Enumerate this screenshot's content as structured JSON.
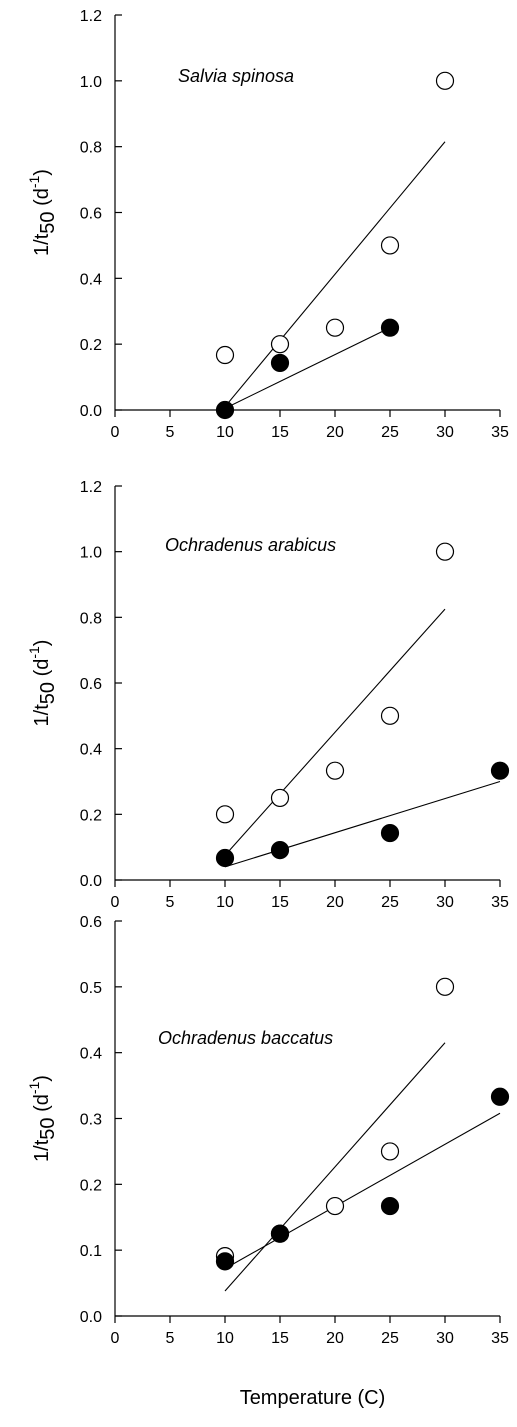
{
  "chart_data": [
    {
      "type": "scatter",
      "annotation": "Salvia spinosa",
      "ylabel": "1/t50 (d-1)",
      "xlim": [
        0,
        35
      ],
      "ylim": [
        0,
        1.2
      ],
      "xticks": [
        0,
        5,
        10,
        15,
        20,
        25,
        30,
        35
      ],
      "yticks": [
        0.0,
        0.2,
        0.4,
        0.6,
        0.8,
        1.0,
        1.2
      ],
      "ytick_decimals": 1,
      "series": [
        {
          "marker": "open-circle",
          "x": [
            10,
            15,
            20,
            25,
            30
          ],
          "y": [
            0.167,
            0.2,
            0.25,
            0.5,
            1.0
          ],
          "fit": {
            "x": [
              10,
              30
            ],
            "y": [
              0.01,
              0.815
            ]
          }
        },
        {
          "marker": "filled-circle",
          "x": [
            10,
            15,
            25
          ],
          "y": [
            0.0,
            0.143,
            0.25
          ],
          "fit": {
            "x": [
              10,
              25
            ],
            "y": [
              0.005,
              0.25
            ]
          }
        }
      ]
    },
    {
      "type": "scatter",
      "annotation": "Ochradenus arabicus",
      "ylabel": "1/t50 (d-1)",
      "xlim": [
        0,
        35
      ],
      "ylim": [
        0,
        1.2
      ],
      "xticks": [
        0,
        5,
        10,
        15,
        20,
        25,
        30,
        35
      ],
      "yticks": [
        0.0,
        0.2,
        0.4,
        0.6,
        0.8,
        1.0,
        1.2
      ],
      "ytick_decimals": 1,
      "series": [
        {
          "marker": "open-circle",
          "x": [
            10,
            15,
            20,
            25,
            30
          ],
          "y": [
            0.2,
            0.25,
            0.333,
            0.5,
            1.0
          ],
          "fit": {
            "x": [
              10,
              30
            ],
            "y": [
              0.075,
              0.825
            ]
          }
        },
        {
          "marker": "filled-circle",
          "x": [
            10,
            15,
            25,
            35
          ],
          "y": [
            0.067,
            0.091,
            0.143,
            0.333
          ],
          "fit": {
            "x": [
              10,
              35
            ],
            "y": [
              0.04,
              0.3
            ]
          }
        }
      ]
    },
    {
      "type": "scatter",
      "annotation": "Ochradenus baccatus",
      "ylabel": "1/t50 (d-1)",
      "xlabel": "Temperature (C)",
      "xlim": [
        0,
        35
      ],
      "ylim": [
        0,
        0.6
      ],
      "xticks": [
        0,
        5,
        10,
        15,
        20,
        25,
        30,
        35
      ],
      "yticks": [
        0.0,
        0.1,
        0.2,
        0.3,
        0.4,
        0.5,
        0.6
      ],
      "ytick_decimals": 1,
      "series": [
        {
          "marker": "open-circle",
          "x": [
            10,
            15,
            20,
            25,
            30
          ],
          "y": [
            0.091,
            0.125,
            0.167,
            0.25,
            0.5
          ],
          "fit": {
            "x": [
              10,
              30
            ],
            "y": [
              0.038,
              0.415
            ]
          }
        },
        {
          "marker": "filled-circle",
          "x": [
            10,
            15,
            25,
            35
          ],
          "y": [
            0.083,
            0.125,
            0.167,
            0.333
          ],
          "fit": {
            "x": [
              10,
              35
            ],
            "y": [
              0.072,
              0.308
            ]
          }
        }
      ]
    }
  ]
}
